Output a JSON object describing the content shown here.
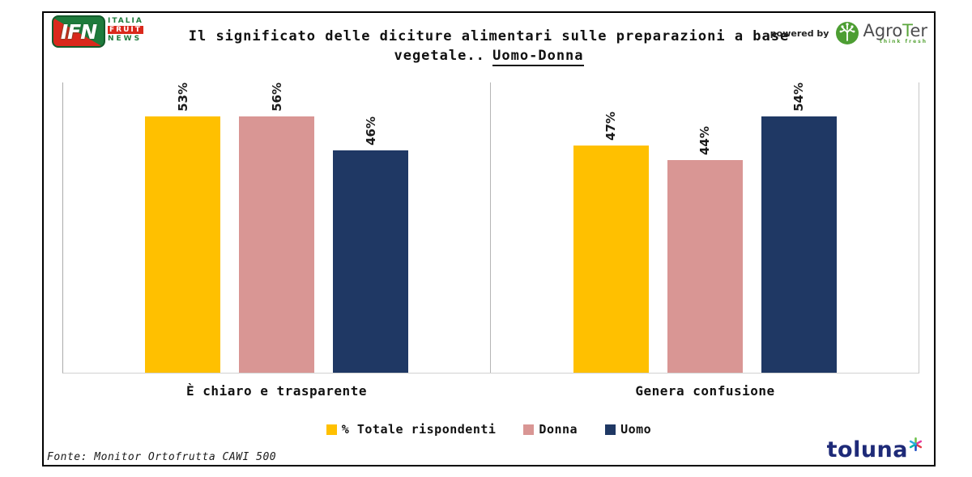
{
  "header": {
    "ifn": {
      "abbr": "IFN",
      "line1": "ITALIA",
      "line2": "FRUIT",
      "line3": "NEWS"
    },
    "title_line1": "Il significato delle diciture alimentari sulle preparazioni a base",
    "title_line2_prefix": "vegetale..",
    "title_line2_underline": "Uomo-Donna",
    "powered_by": "powered by",
    "agroter": {
      "agro": "Agro",
      "t": "T",
      "er": "er",
      "tagline": "think fresh"
    }
  },
  "chart_data": {
    "type": "bar",
    "title": "Il significato delle diciture alimentari sulle preparazioni a base vegetale.. Uomo-Donna",
    "categories": [
      "È chiaro e trasparente",
      "Genera confusione"
    ],
    "series": [
      {
        "name": "% Totale rispondenti",
        "color": "#FFC000",
        "values": [
          53,
          47
        ]
      },
      {
        "name": "Donna",
        "color": "#D99694",
        "values": [
          56,
          44
        ]
      },
      {
        "name": "Uomo",
        "color": "#1F3864",
        "values": [
          46,
          54
        ]
      }
    ],
    "value_suffix": "%",
    "ylim": [
      0,
      60
    ],
    "grid": false,
    "legend_position": "bottom",
    "data_label_style": "rotated-vertical"
  },
  "footer": {
    "source": "Fonte: Monitor Ortofrutta CAWI 500",
    "toluna": "toluna"
  },
  "colors": {
    "bar_yellow": "#FFC000",
    "bar_pink": "#D99694",
    "bar_navy": "#1F3864",
    "axis_gray": "#BFBFBF",
    "frame_border": "#000000",
    "ifn_green": "#1E7B3C",
    "ifn_red": "#DA291C",
    "agro_green": "#5BA63C",
    "toluna_blue": "#1E2A78"
  }
}
